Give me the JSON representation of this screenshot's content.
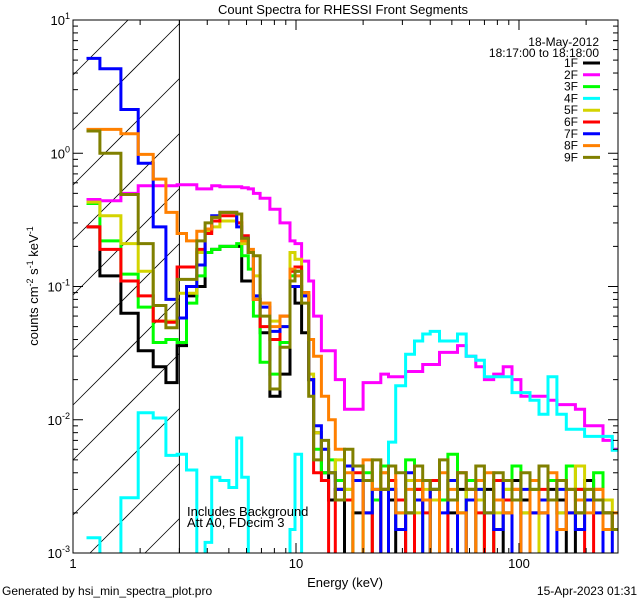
{
  "chart_data": {
    "type": "line",
    "title": "Count Spectra for RHESSI Front Segments",
    "xlabel": "Energy (keV)",
    "ylabel": {
      "base": "counts cm",
      "exp1": "-2",
      "mid": " s",
      "exp2": "-1",
      "mid2": " keV",
      "exp3": "-1"
    },
    "xscale": "log",
    "yscale": "log",
    "xlim": [
      1,
      278
    ],
    "ylim": [
      0.001,
      10
    ],
    "x_ticks": [
      {
        "value": 1,
        "label": "1"
      },
      {
        "value": 10,
        "label": "10"
      },
      {
        "value": 100,
        "label": "100"
      }
    ],
    "y_ticks": [
      {
        "value": 10,
        "base": "10",
        "exp": "1"
      },
      {
        "value": 1,
        "base": "10",
        "exp": "0"
      },
      {
        "value": 0.1,
        "base": "10",
        "exp": "-1"
      },
      {
        "value": 0.01,
        "base": "10",
        "exp": "-2"
      },
      {
        "value": 0.001,
        "base": "10",
        "exp": "-3"
      }
    ],
    "shaded_region_kev": [
      1,
      3
    ],
    "legend_placement": "top-right",
    "legend_header": [
      "18-May-2012",
      "18:17:00 to 18:18:00"
    ],
    "annotations": [
      "Includes Background",
      "Att A0, FDecim 3"
    ],
    "energy_edges_kev": [
      1.15,
      1.32,
      1.64,
      1.96,
      2.29,
      2.61,
      2.93,
      3.23,
      3.59,
      3.91,
      4.19,
      4.56,
      5.0,
      5.42,
      5.71,
      6.11,
      6.44,
      6.9,
      7.64,
      8.48,
      9.4,
      9.9,
      10.6,
      11.4,
      12,
      13,
      14,
      15,
      16.5,
      18,
      20,
      22,
      24,
      26,
      28,
      31,
      34,
      37,
      40,
      44,
      48,
      53,
      58,
      64,
      70,
      77,
      85,
      93,
      102,
      112,
      123,
      135,
      148,
      163,
      179,
      197,
      216,
      238,
      262,
      278
    ],
    "series": [
      {
        "name": "1F",
        "color": "#000000",
        "values": [
          0.28,
          0.12,
          0.063,
          0.033,
          0.025,
          0.019,
          0.036,
          0.085,
          0.1,
          0.18,
          0.19,
          0.2,
          0.2,
          0.2,
          0.11,
          0.11,
          0.08,
          0.045,
          0.015,
          0.022,
          0.1,
          0.075,
          0.045,
          0.02,
          0.008,
          0.004,
          0.0025,
          0.003,
          0.0009,
          0.002,
          0.0035,
          0.0009,
          0.003,
          0.0025,
          0.0009,
          0.002,
          0.003,
          0.0035,
          0.0009,
          0.0025,
          0.002,
          0.003,
          0.0009,
          0.0025,
          0.003,
          0.0009,
          0.002,
          0.0035,
          0.0025,
          0.0009,
          0.002,
          0.003,
          0.0025,
          0.0009,
          0.002,
          0.0035,
          0.0025,
          0.002,
          0.0015
        ]
      },
      {
        "name": "2F",
        "color": "#ff00ff",
        "values": [
          0.45,
          0.44,
          0.5,
          0.57,
          0.57,
          0.57,
          0.58,
          0.58,
          0.54,
          0.54,
          0.57,
          0.56,
          0.56,
          0.56,
          0.55,
          0.54,
          0.5,
          0.46,
          0.38,
          0.3,
          0.22,
          0.21,
          0.155,
          0.11,
          0.06,
          0.033,
          0.033,
          0.02,
          0.012,
          0.012,
          0.019,
          0.019,
          0.022,
          0.021,
          0.021,
          0.023,
          0.023,
          0.026,
          0.026,
          0.032,
          0.032,
          0.036,
          0.03,
          0.025,
          0.02,
          0.022,
          0.025,
          0.02,
          0.015,
          0.015,
          0.015,
          0.014,
          0.013,
          0.013,
          0.012,
          0.009,
          0.009,
          0.007,
          0.006
        ]
      },
      {
        "name": "3F",
        "color": "#00ff00",
        "values": [
          0.42,
          0.22,
          0.124,
          0.07,
          0.038,
          0.04,
          0.038,
          0.075,
          0.12,
          0.18,
          0.19,
          0.2,
          0.2,
          0.21,
          0.17,
          0.135,
          0.06,
          0.027,
          0.022,
          0.038,
          0.12,
          0.13,
          0.085,
          0.02,
          0.006,
          0.004,
          0.005,
          0.0035,
          0.003,
          0.0009,
          0.004,
          0.0025,
          0.0045,
          0.003,
          0.002,
          0.005,
          0.0035,
          0.0009,
          0.003,
          0.0025,
          0.0055,
          0.002,
          0.0035,
          0.003,
          0.0009,
          0.0025,
          0.003,
          0.0045,
          0.002,
          0.003,
          0.0009,
          0.0035,
          0.002,
          0.0045,
          0.003,
          0.0025,
          0.004,
          0.002,
          0.0015
        ]
      },
      {
        "name": "4F",
        "color": "#00ffff",
        "values": [
          0.0013,
          0.0008,
          0.0026,
          0.0113,
          0.0103,
          0.0054,
          0.0055,
          0.0042,
          0.0008,
          0.0012,
          0.0037,
          0.0035,
          0.0031,
          0.0073,
          0.0037,
          0.0008,
          0.0008,
          0.0008,
          0.0008,
          0.0008,
          0.0015,
          0.0055,
          0.0008,
          0.0008,
          0.0008,
          0.0008,
          0.0008,
          0.0008,
          0.0008,
          0.0008,
          0.0008,
          0.0008,
          0.0008,
          0.0068,
          0.018,
          0.031,
          0.039,
          0.044,
          0.046,
          0.039,
          0.039,
          0.044,
          0.03,
          0.028,
          0.021,
          0.021,
          0.021,
          0.016,
          0.016,
          0.014,
          0.011,
          0.021,
          0.011,
          0.0085,
          0.0085,
          0.0075,
          0.0075,
          0.0075,
          0.0059
        ]
      },
      {
        "name": "5F",
        "color": "#d4d400",
        "values": [
          0.43,
          0.34,
          0.21,
          0.13,
          0.055,
          0.055,
          0.089,
          0.089,
          0.18,
          0.26,
          0.28,
          0.31,
          0.31,
          0.3,
          0.21,
          0.18,
          0.12,
          0.075,
          0.055,
          0.05,
          0.18,
          0.16,
          0.09,
          0.022,
          0.008,
          0.006,
          0.004,
          0.005,
          0.003,
          0.0045,
          0.0035,
          0.0009,
          0.004,
          0.003,
          0.0025,
          0.0035,
          0.002,
          0.003,
          0.0025,
          0.0009,
          0.0035,
          0.002,
          0.003,
          0.0025,
          0.0009,
          0.002,
          0.003,
          0.0025,
          0.002,
          0.0035,
          0.0009,
          0.0025,
          0.002,
          0.003,
          0.0045,
          0.003,
          0.002,
          0.0025,
          0.002
        ]
      },
      {
        "name": "6F",
        "color": "#ff0000",
        "values": [
          0.28,
          0.19,
          0.11,
          0.085,
          0.055,
          0.054,
          0.14,
          0.14,
          0.19,
          0.25,
          0.31,
          0.34,
          0.34,
          0.3,
          0.24,
          0.18,
          0.08,
          0.05,
          0.04,
          0.06,
          0.13,
          0.14,
          0.09,
          0.02,
          0.004,
          0.0035,
          0.0009,
          0.003,
          0.0025,
          0.004,
          0.002,
          0.0009,
          0.003,
          0.0035,
          0.0025,
          0.0009,
          0.003,
          0.002,
          0.0035,
          0.0009,
          0.0025,
          0.004,
          0.003,
          0.002,
          0.0009,
          0.0035,
          0.0025,
          0.003,
          0.0009,
          0.002,
          0.003,
          0.0025,
          0.0035,
          0.002,
          0.003,
          0.0009,
          0.003,
          0.002,
          0.0015
        ]
      },
      {
        "name": "7F",
        "color": "#0000ff",
        "values": [
          5.15,
          4.3,
          2.13,
          0.84,
          0.28,
          0.08,
          0.058,
          0.1,
          0.145,
          0.27,
          0.34,
          0.36,
          0.36,
          0.28,
          0.23,
          0.18,
          0.085,
          0.07,
          0.046,
          0.05,
          0.1,
          0.1,
          0.085,
          0.02,
          0.009,
          0.006,
          0.004,
          0.003,
          0.0045,
          0.0035,
          0.002,
          0.003,
          0.0009,
          0.003,
          0.0015,
          0.004,
          0.0025,
          0.0009,
          0.003,
          0.002,
          0.0035,
          0.0009,
          0.0025,
          0.003,
          0.002,
          0.0015,
          0.0035,
          0.0009,
          0.003,
          0.002,
          0.0025,
          0.0009,
          0.003,
          0.002,
          0.0015,
          0.0025,
          0.002,
          0.0009,
          0.0015
        ]
      },
      {
        "name": "8F",
        "color": "#ff8000",
        "values": [
          1.51,
          1.51,
          1.4,
          0.98,
          0.64,
          0.36,
          0.25,
          0.22,
          0.26,
          0.27,
          0.33,
          0.36,
          0.36,
          0.35,
          0.22,
          0.19,
          0.08,
          0.075,
          0.05,
          0.06,
          0.135,
          0.12,
          0.09,
          0.04,
          0.03,
          0.015,
          0.01,
          0.006,
          0.004,
          0.0009,
          0.005,
          0.003,
          0.004,
          0.0045,
          0.002,
          0.003,
          0.0035,
          0.0025,
          0.0009,
          0.004,
          0.003,
          0.002,
          0.0009,
          0.0035,
          0.004,
          0.0025,
          0.002,
          0.003,
          0.0009,
          0.0035,
          0.002,
          0.004,
          0.0015,
          0.003,
          0.0025,
          0.002,
          0.003,
          0.0015,
          0.002
        ]
      },
      {
        "name": "9F",
        "color": "#808000",
        "values": [
          1.47,
          1.0,
          0.49,
          0.21,
          0.072,
          0.049,
          0.113,
          0.113,
          0.22,
          0.3,
          0.33,
          0.36,
          0.36,
          0.35,
          0.23,
          0.18,
          0.17,
          0.06,
          0.017,
          0.035,
          0.11,
          0.13,
          0.075,
          0.015,
          0.005,
          0.007,
          0.004,
          0.0025,
          0.006,
          0.0045,
          0.0035,
          0.005,
          0.003,
          0.0045,
          0.004,
          0.002,
          0.0045,
          0.0035,
          0.003,
          0.005,
          0.0025,
          0.004,
          0.003,
          0.0045,
          0.002,
          0.004,
          0.0035,
          0.0025,
          0.004,
          0.003,
          0.0045,
          0.0025,
          0.0035,
          0.003,
          0.002,
          0.003,
          0.0025,
          0.002,
          0.0015
        ]
      }
    ]
  },
  "footer": {
    "generated_by": "Generated by hsi_min_spectra_plot.pro",
    "timestamp": "15-Apr-2023 01:31"
  }
}
